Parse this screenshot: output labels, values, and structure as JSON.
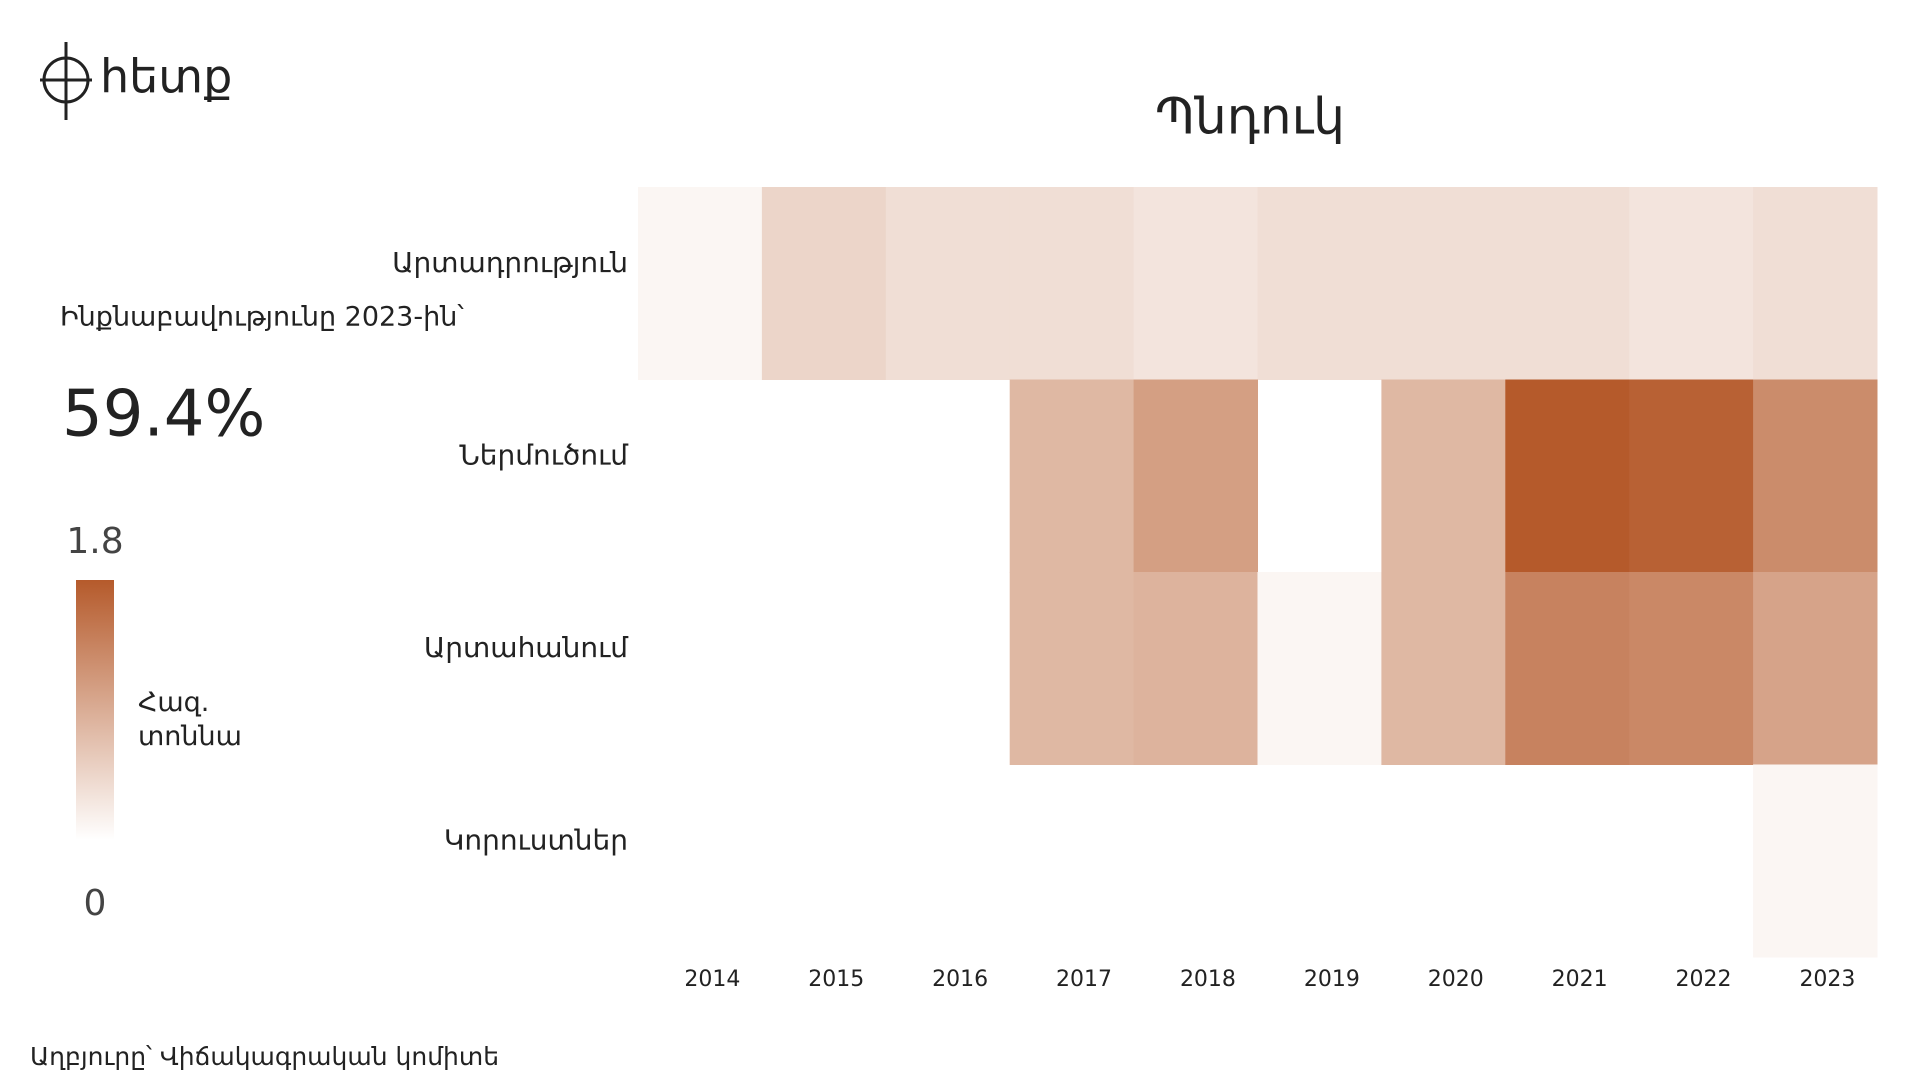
{
  "logo": "հետք",
  "chart_data": {
    "type": "heatmap",
    "title": "Պնդուկ",
    "side_label": "Ինքնաբավությունը 2023-ին՝",
    "side_value": "59.4%",
    "source": "Աղբյուրը՝ Վիճակագրական կոմիտե",
    "x": [
      "2014",
      "2015",
      "2016",
      "2017",
      "2018",
      "2019",
      "2020",
      "2021",
      "2022",
      "2023"
    ],
    "rows": [
      "Արտադրություն",
      "Ներմուծում",
      "Արտահանում",
      "Կորուստներ"
    ],
    "values": [
      [
        0.1,
        0.46,
        0.36,
        0.36,
        0.29,
        0.36,
        0.36,
        0.36,
        0.29,
        0.36
      ],
      [
        null,
        null,
        null,
        0.78,
        1.05,
        null,
        0.78,
        1.8,
        1.72,
        1.26
      ],
      [
        null,
        null,
        null,
        0.78,
        0.83,
        0.1,
        0.78,
        1.36,
        1.3,
        1.0
      ],
      [
        null,
        null,
        null,
        null,
        null,
        null,
        null,
        null,
        null,
        0.1
      ]
    ],
    "colors": [
      "#ffffff",
      "#b55a2b"
    ],
    "zlim": [
      0,
      1.8
    ],
    "zticks": [
      0,
      1.8
    ],
    "colorbar_label": "Հազ. տոննա"
  }
}
